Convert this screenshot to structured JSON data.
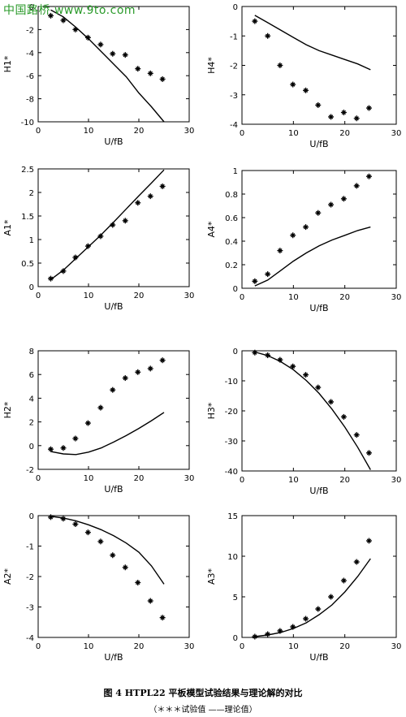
{
  "watermark": "中国路桥 www.9to.com",
  "caption": {
    "title": "图 4 HTPL22 平板模型试验结果与理论解的对比",
    "legend": "（＊＊＊试验值 ——理论值）"
  },
  "chart_data": [
    {
      "type": "line",
      "ylabel": "H1*",
      "xlabel": "U/fB",
      "xlim": [
        0,
        30
      ],
      "ylim": [
        -10,
        0
      ],
      "xticks": [
        0,
        10,
        20,
        30
      ],
      "yticks": [
        -10,
        -8,
        -6,
        -4,
        -2,
        0
      ],
      "series": [
        {
          "x": [
            2.5,
            5,
            7.4,
            9.9,
            12.4,
            14.8,
            17.3,
            19.8,
            22.3,
            24.7
          ],
          "y": [
            -0.8,
            -1.2,
            -2.0,
            -2.7,
            -3.3,
            -4.1,
            -4.2,
            -5.4,
            -5.8,
            -6.3
          ]
        },
        {
          "x": [
            2.5,
            5,
            7.5,
            10,
            12.5,
            15,
            17.5,
            20,
            22.5,
            25
          ],
          "y": [
            -0.3,
            -0.9,
            -1.8,
            -2.8,
            -3.9,
            -5.0,
            -6.1,
            -7.5,
            -8.7,
            -10.0
          ]
        }
      ]
    },
    {
      "type": "line",
      "ylabel": "H4*",
      "xlabel": "U/fB",
      "xlim": [
        0,
        30
      ],
      "ylim": [
        -4,
        0
      ],
      "xticks": [
        0,
        10,
        20,
        30
      ],
      "yticks": [
        -4,
        -3,
        -2,
        -1,
        0
      ],
      "series": [
        {
          "x": [
            2.5,
            5,
            7.4,
            9.9,
            12.4,
            14.8,
            17.3,
            19.8,
            22.3,
            24.7
          ],
          "y": [
            -0.5,
            -1.0,
            -2.0,
            -2.65,
            -2.85,
            -3.35,
            -3.75,
            -3.6,
            -3.8,
            -3.45
          ]
        },
        {
          "x": [
            2.5,
            5,
            7.5,
            10,
            12.5,
            15,
            17.5,
            20,
            22.5,
            25
          ],
          "y": [
            -0.3,
            -0.55,
            -0.8,
            -1.05,
            -1.3,
            -1.5,
            -1.65,
            -1.8,
            -1.95,
            -2.15
          ]
        }
      ]
    },
    {
      "type": "line",
      "ylabel": "A1*",
      "xlabel": "U/fB",
      "xlim": [
        0,
        30
      ],
      "ylim": [
        0,
        2.5
      ],
      "xticks": [
        0,
        10,
        20,
        30
      ],
      "yticks": [
        0,
        0.5,
        1,
        1.5,
        2,
        2.5
      ],
      "series": [
        {
          "x": [
            2.5,
            5,
            7.4,
            9.9,
            12.4,
            14.8,
            17.3,
            19.8,
            22.3,
            24.7
          ],
          "y": [
            0.17,
            0.33,
            0.62,
            0.86,
            1.07,
            1.31,
            1.4,
            1.78,
            1.92,
            2.13
          ]
        },
        {
          "x": [
            2.5,
            5,
            7.5,
            10,
            12.5,
            15,
            17.5,
            20,
            22.5,
            25
          ],
          "y": [
            0.15,
            0.35,
            0.6,
            0.85,
            1.1,
            1.37,
            1.65,
            1.93,
            2.2,
            2.48
          ]
        }
      ]
    },
    {
      "type": "line",
      "ylabel": "A4*",
      "xlabel": "U/fB",
      "xlim": [
        0,
        30
      ],
      "ylim": [
        0,
        1
      ],
      "xticks": [
        0,
        10,
        20,
        30
      ],
      "yticks": [
        0,
        0.2,
        0.4,
        0.6,
        0.8,
        1
      ],
      "series": [
        {
          "x": [
            2.5,
            5,
            7.4,
            9.9,
            12.4,
            14.8,
            17.3,
            19.8,
            22.3,
            24.7
          ],
          "y": [
            0.06,
            0.12,
            0.32,
            0.45,
            0.52,
            0.64,
            0.71,
            0.76,
            0.87,
            0.95
          ]
        },
        {
          "x": [
            2.5,
            5,
            7.5,
            10,
            12.5,
            15,
            17.5,
            20,
            22.5,
            25
          ],
          "y": [
            0.02,
            0.07,
            0.15,
            0.23,
            0.3,
            0.36,
            0.41,
            0.45,
            0.49,
            0.52
          ]
        }
      ]
    },
    {
      "type": "line",
      "ylabel": "H2*",
      "xlabel": "U/fB",
      "xlim": [
        0,
        30
      ],
      "ylim": [
        -2,
        8
      ],
      "xticks": [
        0,
        10,
        20,
        30
      ],
      "yticks": [
        -2,
        0,
        2,
        4,
        6,
        8
      ],
      "series": [
        {
          "x": [
            2.5,
            5,
            7.4,
            9.9,
            12.4,
            14.8,
            17.3,
            19.8,
            22.3,
            24.7
          ],
          "y": [
            -0.3,
            -0.2,
            0.6,
            1.9,
            3.2,
            4.7,
            5.7,
            6.2,
            6.5,
            7.2
          ]
        },
        {
          "x": [
            2.5,
            5,
            7.5,
            10,
            12.5,
            15,
            17.5,
            20,
            22.5,
            25
          ],
          "y": [
            -0.5,
            -0.7,
            -0.75,
            -0.55,
            -0.2,
            0.3,
            0.85,
            1.45,
            2.1,
            2.8
          ]
        }
      ]
    },
    {
      "type": "line",
      "ylabel": "H3*",
      "xlabel": "U/fB",
      "xlim": [
        0,
        30
      ],
      "ylim": [
        -40,
        0
      ],
      "xticks": [
        0,
        10,
        20,
        30
      ],
      "yticks": [
        -40,
        -30,
        -20,
        -10,
        0
      ],
      "series": [
        {
          "x": [
            2.5,
            5,
            7.4,
            9.9,
            12.4,
            14.8,
            17.3,
            19.8,
            22.3,
            24.7
          ],
          "y": [
            -0.6,
            -1.5,
            -3.0,
            -5.2,
            -8.0,
            -12.2,
            -17.0,
            -22.0,
            -28.0,
            -34.0
          ]
        },
        {
          "x": [
            2.5,
            5,
            7.5,
            10,
            12.5,
            15,
            17.5,
            20,
            22.5,
            25
          ],
          "y": [
            -0.4,
            -1.6,
            -3.6,
            -6.3,
            -9.9,
            -14.2,
            -19.4,
            -25.4,
            -32.1,
            -39.6
          ]
        }
      ]
    },
    {
      "type": "line",
      "ylabel": "A2*",
      "xlabel": "U/fB",
      "xlim": [
        0,
        30
      ],
      "ylim": [
        -4,
        0
      ],
      "xticks": [
        0,
        10,
        20,
        30
      ],
      "yticks": [
        -4,
        -3,
        -2,
        -1,
        0
      ],
      "series": [
        {
          "x": [
            2.5,
            5,
            7.4,
            9.9,
            12.4,
            14.8,
            17.3,
            19.8,
            22.3,
            24.7
          ],
          "y": [
            -0.05,
            -0.1,
            -0.28,
            -0.55,
            -0.85,
            -1.3,
            -1.7,
            -2.2,
            -2.8,
            -3.35
          ]
        },
        {
          "x": [
            2.5,
            5,
            7.5,
            10,
            12.5,
            15,
            17.5,
            20,
            22.5,
            25
          ],
          "y": [
            -0.02,
            -0.08,
            -0.17,
            -0.3,
            -0.46,
            -0.66,
            -0.9,
            -1.2,
            -1.65,
            -2.25
          ]
        }
      ]
    },
    {
      "type": "line",
      "ylabel": "A3*",
      "xlabel": "U/fB",
      "xlim": [
        0,
        30
      ],
      "ylim": [
        0,
        15
      ],
      "xticks": [
        0,
        10,
        20,
        30
      ],
      "yticks": [
        0,
        5,
        10,
        15
      ],
      "series": [
        {
          "x": [
            2.5,
            5,
            7.4,
            9.9,
            12.4,
            14.8,
            17.3,
            19.8,
            22.3,
            24.7
          ],
          "y": [
            0.1,
            0.4,
            0.8,
            1.3,
            2.3,
            3.5,
            5.0,
            7.0,
            9.3,
            11.9
          ]
        },
        {
          "x": [
            2.5,
            5,
            7.5,
            10,
            12.5,
            15,
            17.5,
            20,
            22.5,
            25
          ],
          "y": [
            0.1,
            0.3,
            0.6,
            1.1,
            1.8,
            2.8,
            4.0,
            5.6,
            7.5,
            9.7
          ]
        }
      ]
    }
  ]
}
